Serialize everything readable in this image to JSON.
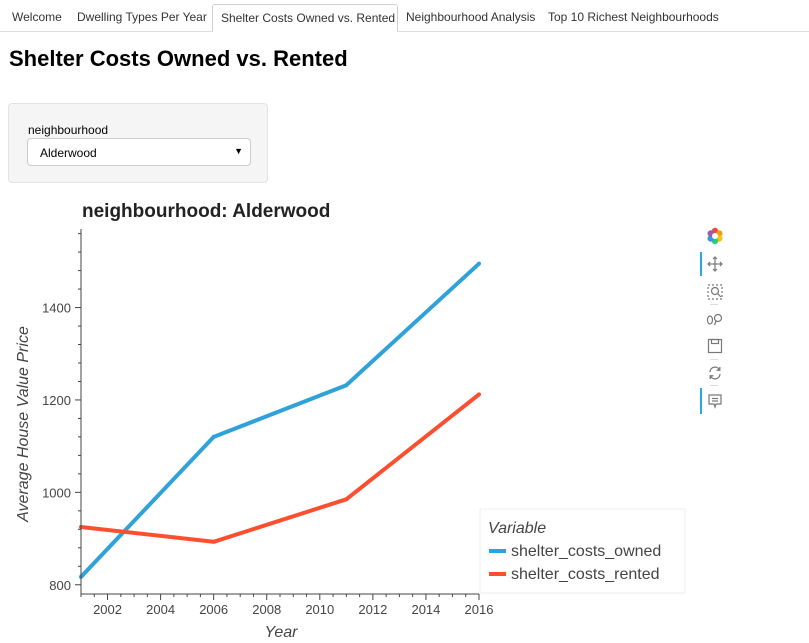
{
  "tabs": [
    {
      "label": "Welcome",
      "active": false
    },
    {
      "label": "Dwelling Types Per Year",
      "active": false
    },
    {
      "label": "Shelter Costs Owned vs. Rented",
      "active": true
    },
    {
      "label": "Neighbourhood Analysis",
      "active": false
    },
    {
      "label": "Top 10 Richest Neighbourhoods",
      "active": false
    }
  ],
  "page_title": "Shelter Costs Owned vs. Rented",
  "widget": {
    "label": "neighbourhood",
    "selected": "Alderwood",
    "arrow": "▼"
  },
  "toolbar": {
    "icons": [
      "bokeh-logo-icon",
      "pan-icon",
      "box-zoom-icon",
      "wheel-zoom-icon",
      "save-icon",
      "reset-icon",
      "hover-icon"
    ]
  },
  "chart_data": {
    "type": "line",
    "title": "neighbourhood: Alderwood",
    "xlabel": "Year",
    "ylabel": "Average House Value Price",
    "x": [
      2001,
      2006,
      2011,
      2016
    ],
    "xlim": [
      2001,
      2016
    ],
    "ylim": [
      780,
      1570
    ],
    "xticks": [
      2002,
      2004,
      2006,
      2008,
      2010,
      2012,
      2014,
      2016
    ],
    "yticks": [
      800,
      1000,
      1200,
      1400
    ],
    "grid": false,
    "legend_title": "Variable",
    "legend_position": "bottom-right",
    "series": [
      {
        "name": "shelter_costs_owned",
        "color": "#30a2da",
        "values": [
          817,
          1120,
          1232,
          1495
        ]
      },
      {
        "name": "shelter_costs_rented",
        "color": "#fc4f30",
        "values": [
          925,
          893,
          985,
          1212
        ]
      }
    ]
  }
}
